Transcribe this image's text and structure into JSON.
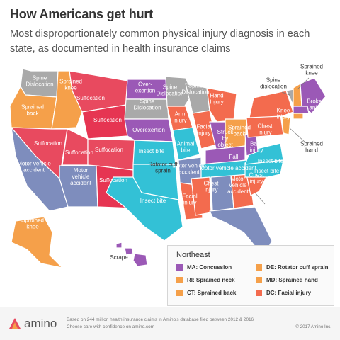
{
  "title": "How Americans get hurt",
  "subtitle": "Most disproportionately common physical injury diagnosis in each state, as documented in health insurance claims",
  "colors": {
    "gray": "#a9a9a9",
    "orange": "#f5a04a",
    "red": "#e84a5f",
    "magenta": "#e63552",
    "purple": "#9b59b6",
    "slate": "#7e8dbd",
    "cyan": "#33c1d6",
    "coral": "#f36b4e"
  },
  "labels": {
    "wa": "Spine Dislocation",
    "or": "Sprained back",
    "id": "Sprained knee",
    "mt": "Suffocation",
    "wy": "Suffocation",
    "nd": "Over- exertion",
    "sd": "Spine Dislocation",
    "mn": "Spine Dislocation",
    "wi": "Spine Dislocation",
    "ne": "Overexertion",
    "nv": "Suffocation",
    "ut": "Suffocation",
    "co": "Suffocation",
    "ca": "Motor vehicle accident",
    "az": "Motor vehicle accident",
    "nm": "Suffocation",
    "ks": "Insect bite",
    "ok": "Insect bite",
    "mo": "Animal bite",
    "ia": "Arm injury",
    "il": "Facial injury",
    "mi": "Hand Injury",
    "in": "Struck by object",
    "oh": "Sprained back",
    "ky": "Fall",
    "tn": "Motor vehicle accident",
    "ar": "Motor vehicle accident",
    "tx_rot": "Rotator cuff sprain",
    "ms": "Chest injury",
    "la": "Facial injury",
    "al": "Motor vehicle accident",
    "ga": "Chest injury",
    "fl": "Head injury",
    "sc": "Chest injury",
    "nc": "Insect bite",
    "va": "Insect bite",
    "wv": "Back injury",
    "pa": "Chest injury",
    "ny": "Knee injury",
    "vt": "Spine dislocation",
    "nh": "Sprained knee",
    "me": "Broken ankle",
    "nj": "Sprained hand",
    "ak": "Sprained knee",
    "hi": "Scrape"
  },
  "legend": {
    "title": "Northeast",
    "items": [
      {
        "label": "MA: Concussion",
        "color": "#9b59b6"
      },
      {
        "label": "DE: Rotator cuff sprain",
        "color": "#f5a04a"
      },
      {
        "label": "RI: Sprained neck",
        "color": "#f5a04a"
      },
      {
        "label": "MD: Sprained hand",
        "color": "#f5a04a"
      },
      {
        "label": "CT: Sprained back",
        "color": "#f5a04a"
      },
      {
        "label": "DC: Facial injury",
        "color": "#f36b4e"
      }
    ]
  },
  "footer": {
    "brand": "amino",
    "line1": "Based on 244 million health insurance claims in Amino's database filed between 2012 & 2016",
    "line2": "Choose care with confidence on amino.com",
    "copyright": "© 2017 Amino Inc."
  }
}
